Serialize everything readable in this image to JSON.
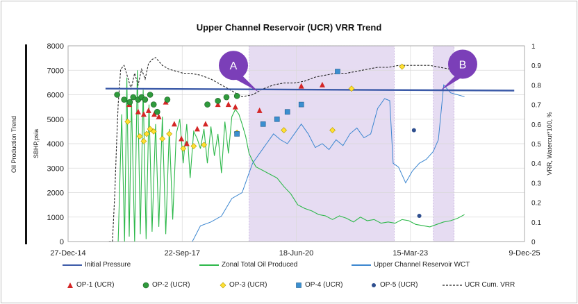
{
  "colors": {
    "initial_pressure": "#3b5aa8",
    "zonal_oil": "#2db84a",
    "wct": "#3b86d0",
    "op1": "#d42626",
    "op2": "#2f9a3c",
    "op3": "#ffe033",
    "op4": "#3b8fd0",
    "op5": "#2f4f8f",
    "vrr": "#222222",
    "shade": "#e6dcf2",
    "callout": "#7b3fb8"
  },
  "chart_data": {
    "type": "line",
    "title": "Upper Channel Reservoir (UCR) VRR Trend",
    "outer_label": "Oil Production Trend",
    "ylabel": "SBHP,psia",
    "y2label": "VRR, Watercut*100, %",
    "xlim": [
      "2014-12-27",
      "2025-12-09"
    ],
    "ylim": [
      0,
      8000
    ],
    "y2lim": [
      0,
      1
    ],
    "x_tick_labels": [
      "27-Dec-14",
      "22-Sep-17",
      "18-Jun-20",
      "15-Mar-23",
      "9-Dec-25"
    ],
    "y_ticks": [
      "0",
      "1000",
      "2000",
      "3000",
      "4000",
      "5000",
      "6000",
      "7000",
      "8000"
    ],
    "y2_ticks": [
      "0",
      "0.1",
      "0.2",
      "0.3",
      "0.4",
      "0.5",
      "0.6",
      "0.7",
      "0.8",
      "0.9",
      "1"
    ],
    "grid": true,
    "shaded_periods": [
      {
        "start": "2019-05-01",
        "end": "2022-10-25"
      },
      {
        "start": "2023-10-01",
        "end": "2024-04-01"
      }
    ],
    "callouts": [
      {
        "label": "A",
        "x": "2018-12-15",
        "y": 7200
      },
      {
        "label": "B",
        "x": "2024-06-15",
        "y": 7250
      }
    ],
    "initial_pressure": {
      "name": "Initial Pressure",
      "x": [
        "2015-11-20",
        "2025-09-10"
      ],
      "y": [
        6250,
        6170
      ]
    },
    "zonal_oil": {
      "name": "Zonal Total Oil Produced",
      "x": [
        "2016-03-10",
        "2016-04-10",
        "2016-05-05",
        "2016-05-25",
        "2016-06-15",
        "2016-07-05",
        "2016-08-01",
        "2016-08-25",
        "2016-09-20",
        "2016-10-15",
        "2016-11-10",
        "2016-12-05",
        "2017-01-01",
        "2017-02-01",
        "2017-03-01",
        "2017-04-01",
        "2017-05-01",
        "2017-06-01",
        "2017-07-01",
        "2017-08-01",
        "2017-09-01",
        "2017-10-01",
        "2017-11-01",
        "2017-12-01",
        "2018-01-01",
        "2018-02-01",
        "2018-03-01",
        "2018-04-01",
        "2018-05-01",
        "2018-06-01",
        "2018-07-01",
        "2018-08-01",
        "2018-09-01",
        "2018-10-01",
        "2018-11-01",
        "2018-12-01",
        "2019-01-01",
        "2019-02-01",
        "2019-03-01",
        "2019-04-01",
        "2019-05-01",
        "2019-06-01",
        "2019-07-01",
        "2019-09-01",
        "2019-11-01",
        "2020-01-01",
        "2020-03-01",
        "2020-05-01",
        "2020-07-01",
        "2020-09-01",
        "2020-11-01",
        "2021-01-01",
        "2021-03-01",
        "2021-05-01",
        "2021-07-01",
        "2021-09-01",
        "2021-11-01",
        "2022-01-01",
        "2022-03-01",
        "2022-05-01",
        "2022-07-01",
        "2022-09-01",
        "2022-11-01",
        "2023-01-01",
        "2023-03-01",
        "2023-05-01",
        "2023-07-01",
        "2023-09-01",
        "2023-11-01",
        "2024-01-01",
        "2024-03-01",
        "2024-05-01",
        "2024-07-01"
      ],
      "y": [
        0,
        5200,
        0,
        6700,
        200,
        5800,
        0,
        7000,
        300,
        6200,
        100,
        5600,
        400,
        4800,
        600,
        5100,
        300,
        4600,
        900,
        4400,
        5000,
        3200,
        4800,
        2600,
        4500,
        4200,
        3800,
        4600,
        3200,
        4700,
        3500,
        4400,
        2800,
        4900,
        3600,
        5100,
        5400,
        5200,
        4800,
        4300,
        3600,
        3300,
        3050,
        2900,
        2750,
        2600,
        2250,
        1950,
        1500,
        1350,
        1250,
        1100,
        1050,
        900,
        1050,
        950,
        800,
        1000,
        850,
        900,
        750,
        800,
        750,
        900,
        850,
        700,
        650,
        600,
        700,
        800,
        850,
        950,
        1100
      ]
    },
    "wct": {
      "name": "Upper Channel Reservoir WCT",
      "x": [
        "2017-12-20",
        "2018-03-01",
        "2018-06-01",
        "2018-09-01",
        "2018-12-01",
        "2019-03-01",
        "2019-05-01",
        "2019-06-01",
        "2019-08-01",
        "2019-10-01",
        "2019-12-01",
        "2020-02-01",
        "2020-04-01",
        "2020-06-01",
        "2020-08-01",
        "2020-10-01",
        "2020-12-01",
        "2021-02-01",
        "2021-04-01",
        "2021-06-01",
        "2021-08-01",
        "2021-10-01",
        "2021-12-01",
        "2022-02-01",
        "2022-04-01",
        "2022-06-01",
        "2022-08-01",
        "2022-09-15",
        "2022-10-15",
        "2022-12-01",
        "2023-02-01",
        "2023-04-01",
        "2023-06-01",
        "2023-08-01",
        "2023-10-01",
        "2023-11-15",
        "2024-01-01",
        "2024-03-01",
        "2024-05-01",
        "2024-07-01"
      ],
      "y": [
        0,
        0.08,
        0.1,
        0.13,
        0.22,
        0.25,
        0.35,
        0.4,
        0.45,
        0.5,
        0.55,
        0.52,
        0.5,
        0.55,
        0.6,
        0.55,
        0.48,
        0.5,
        0.47,
        0.52,
        0.49,
        0.55,
        0.58,
        0.53,
        0.55,
        0.68,
        0.73,
        0.72,
        0.4,
        0.38,
        0.3,
        0.36,
        0.4,
        0.42,
        0.46,
        0.52,
        0.8,
        0.76,
        0.75,
        0.74
      ]
    },
    "vrr": {
      "name": "UCR Cum. VRR",
      "x": [
        "2015-12-20",
        "2016-01-20",
        "2016-02-10",
        "2016-02-25",
        "2016-03-10",
        "2016-04-01",
        "2016-05-01",
        "2016-06-01",
        "2016-07-01",
        "2016-08-01",
        "2016-09-01",
        "2016-10-01",
        "2016-11-01",
        "2016-12-01",
        "2017-01-01",
        "2017-02-01",
        "2017-04-01",
        "2017-06-01",
        "2017-08-01",
        "2017-10-01",
        "2017-12-01",
        "2018-03-01",
        "2018-06-01",
        "2018-09-01",
        "2018-12-01",
        "2019-03-01",
        "2019-06-01",
        "2019-09-01",
        "2019-12-01",
        "2020-03-01",
        "2020-06-01",
        "2020-09-01",
        "2020-12-01",
        "2021-03-01",
        "2021-06-01",
        "2021-09-01",
        "2021-12-01",
        "2022-03-01",
        "2022-06-01",
        "2022-09-01",
        "2022-12-01",
        "2023-03-01",
        "2023-06-01",
        "2023-09-01",
        "2023-12-01",
        "2024-03-01",
        "2024-06-01",
        "2024-07-15"
      ],
      "y": [
        0,
        0,
        0.25,
        0.5,
        0.7,
        0.88,
        0.9,
        0.84,
        0.78,
        0.86,
        0.8,
        0.88,
        0.83,
        0.91,
        0.93,
        0.94,
        0.9,
        0.88,
        0.87,
        0.86,
        0.86,
        0.85,
        0.83,
        0.8,
        0.77,
        0.74,
        0.75,
        0.78,
        0.8,
        0.81,
        0.81,
        0.82,
        0.84,
        0.85,
        0.86,
        0.86,
        0.87,
        0.88,
        0.89,
        0.89,
        0.9,
        0.9,
        0.9,
        0.9,
        0.89,
        0.88,
        0.86,
        0.84
      ]
    },
    "op_series": [
      {
        "name": "OP-1 (UCR)",
        "shape": "triangle",
        "x": [
          "2016-06-15",
          "2016-09-01",
          "2016-10-20",
          "2016-12-01",
          "2017-01-20",
          "2017-03-01",
          "2017-05-01",
          "2017-07-15",
          "2017-09-15",
          "2017-11-01",
          "2018-02-01",
          "2018-04-15",
          "2018-08-01",
          "2018-11-01",
          "2019-01-01",
          "2019-08-01",
          "2020-08-01",
          "2021-02-01"
        ],
        "y": [
          5600,
          5300,
          5200,
          5350,
          5200,
          5100,
          5700,
          4800,
          4200,
          4000,
          4600,
          4800,
          5600,
          5600,
          5500,
          5350,
          6350,
          6400
        ]
      },
      {
        "name": "OP-2 (UCR)",
        "shape": "circle",
        "x": [
          "2016-03-01",
          "2016-05-01",
          "2016-06-20",
          "2016-07-20",
          "2016-09-01",
          "2016-10-01",
          "2016-11-01",
          "2016-12-15",
          "2017-01-15",
          "2017-02-15",
          "2017-05-15",
          "2018-05-01",
          "2018-08-01",
          "2018-10-15",
          "2019-01-15"
        ],
        "y": [
          6000,
          5800,
          5700,
          5900,
          5800,
          5900,
          5800,
          6000,
          5600,
          5300,
          5800,
          5600,
          5750,
          5900,
          5950
        ]
      },
      {
        "name": "OP-3 (UCR)",
        "shape": "diamond",
        "x": [
          "2016-06-01",
          "2016-09-15",
          "2016-10-20",
          "2016-11-15",
          "2016-12-15",
          "2017-01-15",
          "2017-04-01",
          "2017-06-01",
          "2017-10-01",
          "2018-01-01",
          "2018-04-01",
          "2019-01-15",
          "2020-03-01",
          "2021-05-01",
          "2021-10-15",
          "2023-01-01"
        ],
        "y": [
          4900,
          4300,
          4100,
          4400,
          4600,
          4500,
          4200,
          4400,
          3800,
          3900,
          3950,
          4450,
          4550,
          4550,
          6250,
          7150
        ]
      },
      {
        "name": "OP-4 (UCR)",
        "shape": "square",
        "x": [
          "2019-01-15",
          "2019-09-01",
          "2020-01-01",
          "2020-04-01",
          "2020-08-01",
          "2021-06-15"
        ],
        "y": [
          4400,
          4800,
          5000,
          5300,
          5600,
          6950
        ]
      },
      {
        "name": "OP-5 (UCR)",
        "shape": "circle",
        "x": [
          "2023-04-15",
          "2023-06-01"
        ],
        "y": [
          4550,
          1050
        ]
      }
    ]
  },
  "legend": {
    "initial_pressure": "Initial Pressure",
    "zonal_oil": "Zonal Total Oil Produced",
    "wct": "Upper Channel Reservoir WCT",
    "op1": "OP-1 (UCR)",
    "op2": "OP-2 (UCR)",
    "op3": "OP-3 (UCR)",
    "op4": "OP-4 (UCR)",
    "op5": "OP-5 (UCR)",
    "vrr": "UCR Cum. VRR"
  }
}
